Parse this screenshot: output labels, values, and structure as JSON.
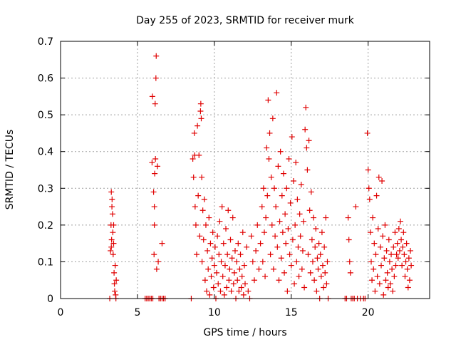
{
  "chart_data": {
    "type": "scatter",
    "title": "Day 255 of 2023, SRMTID for receiver murk",
    "xlabel": "GPS time / hours",
    "ylabel": "SRMTID / TECUs",
    "xlim": [
      0,
      24
    ],
    "ylim": [
      0,
      0.7
    ],
    "xticks": [
      0,
      5,
      10,
      15,
      20
    ],
    "yticks": [
      0,
      0.1,
      0.2,
      0.3,
      0.4,
      0.5,
      0.6,
      0.7
    ],
    "xtick_labels": [
      "0",
      "5",
      "10",
      "15",
      "20"
    ],
    "ytick_labels": [
      "0",
      "0.1",
      "0.2",
      "0.3",
      "0.4",
      "0.5",
      "0.6",
      "0.7"
    ],
    "grid": true,
    "marker": "+",
    "color": "#e00000",
    "series": [
      {
        "points": [
          [
            3.2,
            0.0
          ],
          [
            3.25,
            0.13
          ],
          [
            3.28,
            0.2
          ],
          [
            3.3,
            0.29
          ],
          [
            3.32,
            0.16
          ],
          [
            3.35,
            0.27
          ],
          [
            3.38,
            0.23
          ],
          [
            3.4,
            0.18
          ],
          [
            3.42,
            0.12
          ],
          [
            3.45,
            0.2
          ],
          [
            3.48,
            0.07
          ],
          [
            3.5,
            0.04
          ],
          [
            3.52,
            0.02
          ],
          [
            3.55,
            0.09
          ],
          [
            3.58,
            0.01
          ],
          [
            3.6,
            0.0
          ],
          [
            3.62,
            0.05
          ],
          [
            3.3,
            0.14
          ],
          [
            3.34,
            0.25
          ],
          [
            3.45,
            0.15
          ],
          [
            5.5,
            0.0
          ],
          [
            5.6,
            0.0
          ],
          [
            5.7,
            0.0
          ],
          [
            5.8,
            0.0
          ],
          [
            5.9,
            0.0
          ],
          [
            6.0,
            0.0
          ],
          [
            5.95,
            0.37
          ],
          [
            5.97,
            0.55
          ],
          [
            6.05,
            0.29
          ],
          [
            6.08,
            0.12
          ],
          [
            6.1,
            0.2
          ],
          [
            6.12,
            0.34
          ],
          [
            6.15,
            0.53
          ],
          [
            6.17,
            0.38
          ],
          [
            6.2,
            0.6
          ],
          [
            6.22,
            0.66
          ],
          [
            6.25,
            0.08
          ],
          [
            6.3,
            0.36
          ],
          [
            6.35,
            0.1
          ],
          [
            6.1,
            0.25
          ],
          [
            6.4,
            0.0
          ],
          [
            6.5,
            0.0
          ],
          [
            6.6,
            0.15
          ],
          [
            6.6,
            0.0
          ],
          [
            6.7,
            0.0
          ],
          [
            6.8,
            0.0
          ],
          [
            8.5,
            0.0
          ],
          [
            8.6,
            0.38
          ],
          [
            8.65,
            0.33
          ],
          [
            8.7,
            0.45
          ],
          [
            8.72,
            0.39
          ],
          [
            8.75,
            0.25
          ],
          [
            8.8,
            0.2
          ],
          [
            8.85,
            0.12
          ],
          [
            8.9,
            0.47
          ],
          [
            8.95,
            0.28
          ],
          [
            9.0,
            0.39
          ],
          [
            9.05,
            0.17
          ],
          [
            9.1,
            0.51
          ],
          [
            9.12,
            0.53
          ],
          [
            9.15,
            0.49
          ],
          [
            9.18,
            0.33
          ],
          [
            9.2,
            0.1
          ],
          [
            9.25,
            0.24
          ],
          [
            9.3,
            0.16
          ],
          [
            9.35,
            0.27
          ],
          [
            9.4,
            0.05
          ],
          [
            9.45,
            0.2
          ],
          [
            9.5,
            0.02
          ],
          [
            9.55,
            0.13
          ],
          [
            9.6,
            0.08
          ],
          [
            9.65,
            0.22
          ],
          [
            9.7,
            0.01
          ],
          [
            9.75,
            0.15
          ],
          [
            9.8,
            0.06
          ],
          [
            9.85,
            0.11
          ],
          [
            9.9,
            0.18
          ],
          [
            9.95,
            0.03
          ],
          [
            10.0,
            0.09
          ],
          [
            10.05,
            0.14
          ],
          [
            10.1,
            0.0
          ],
          [
            10.15,
            0.07
          ],
          [
            10.2,
            0.17
          ],
          [
            10.25,
            0.04
          ],
          [
            10.3,
            0.12
          ],
          [
            10.35,
            0.21
          ],
          [
            10.4,
            0.02
          ],
          [
            10.45,
            0.1
          ],
          [
            10.5,
            0.25
          ],
          [
            10.55,
            0.06
          ],
          [
            10.6,
            0.15
          ],
          [
            10.65,
            0.01
          ],
          [
            10.7,
            0.09
          ],
          [
            10.75,
            0.19
          ],
          [
            10.8,
            0.03
          ],
          [
            10.85,
            0.12
          ],
          [
            10.9,
            0.24
          ],
          [
            10.95,
            0.05
          ],
          [
            11.0,
            0.08
          ],
          [
            11.05,
            0.16
          ],
          [
            11.1,
            0.02
          ],
          [
            11.15,
            0.11
          ],
          [
            11.2,
            0.22
          ],
          [
            11.25,
            0.04
          ],
          [
            11.3,
            0.07
          ],
          [
            11.35,
            0.13
          ],
          [
            11.4,
            0.0
          ],
          [
            11.45,
            0.1
          ],
          [
            11.5,
            0.05
          ],
          [
            11.55,
            0.15
          ],
          [
            11.6,
            0.02
          ],
          [
            11.65,
            0.08
          ],
          [
            11.7,
            0.12
          ],
          [
            11.75,
            0.03
          ],
          [
            11.8,
            0.06
          ],
          [
            11.85,
            0.18
          ],
          [
            11.9,
            0.01
          ],
          [
            11.95,
            0.09
          ],
          [
            12.0,
            0.04
          ],
          [
            12.1,
            0.14
          ],
          [
            12.2,
            0.02
          ],
          [
            12.3,
            0.0
          ],
          [
            12.4,
            0.17
          ],
          [
            12.5,
            0.1
          ],
          [
            12.6,
            0.05
          ],
          [
            12.7,
            0.13
          ],
          [
            12.8,
            0.2
          ],
          [
            12.9,
            0.08
          ],
          [
            13.0,
            0.15
          ],
          [
            13.1,
            0.25
          ],
          [
            13.15,
            0.1
          ],
          [
            13.2,
            0.3
          ],
          [
            13.25,
            0.18
          ],
          [
            13.3,
            0.06
          ],
          [
            13.35,
            0.22
          ],
          [
            13.4,
            0.41
          ],
          [
            13.45,
            0.28
          ],
          [
            13.5,
            0.54
          ],
          [
            13.55,
            0.38
          ],
          [
            13.6,
            0.45
          ],
          [
            13.65,
            0.12
          ],
          [
            13.7,
            0.33
          ],
          [
            13.75,
            0.2
          ],
          [
            13.8,
            0.49
          ],
          [
            13.85,
            0.08
          ],
          [
            13.9,
            0.3
          ],
          [
            13.95,
            0.17
          ],
          [
            14.0,
            0.25
          ],
          [
            14.05,
            0.56
          ],
          [
            14.1,
            0.14
          ],
          [
            14.15,
            0.36
          ],
          [
            14.2,
            0.05
          ],
          [
            14.25,
            0.21
          ],
          [
            14.3,
            0.4
          ],
          [
            14.35,
            0.11
          ],
          [
            14.4,
            0.28
          ],
          [
            14.45,
            0.18
          ],
          [
            14.5,
            0.34
          ],
          [
            14.55,
            0.07
          ],
          [
            14.6,
            0.23
          ],
          [
            14.65,
            0.15
          ],
          [
            14.7,
            0.3
          ],
          [
            14.75,
            0.02
          ],
          [
            14.8,
            0.19
          ],
          [
            14.85,
            0.38
          ],
          [
            14.9,
            0.12
          ],
          [
            14.95,
            0.26
          ],
          [
            15.0,
            0.09
          ],
          [
            15.05,
            0.44
          ],
          [
            15.1,
            0.16
          ],
          [
            15.15,
            0.32
          ],
          [
            15.2,
            0.04
          ],
          [
            15.25,
            0.2
          ],
          [
            15.3,
            0.37
          ],
          [
            15.35,
            0.1
          ],
          [
            15.4,
            0.27
          ],
          [
            15.45,
            0.14
          ],
          [
            15.5,
            0.06
          ],
          [
            15.55,
            0.23
          ],
          [
            15.6,
            0.17
          ],
          [
            15.65,
            0.31
          ],
          [
            15.7,
            0.08
          ],
          [
            15.75,
            0.13
          ],
          [
            15.8,
            0.21
          ],
          [
            15.85,
            0.03
          ],
          [
            15.9,
            0.46
          ],
          [
            15.95,
            0.52
          ],
          [
            16.0,
            0.41
          ],
          [
            16.05,
            0.35
          ],
          [
            16.1,
            0.12
          ],
          [
            16.15,
            0.43
          ],
          [
            16.2,
            0.24
          ],
          [
            16.25,
            0.07
          ],
          [
            16.3,
            0.29
          ],
          [
            16.35,
            0.16
          ],
          [
            16.4,
            0.1
          ],
          [
            16.45,
            0.22
          ],
          [
            16.5,
            0.05
          ],
          [
            16.55,
            0.14
          ],
          [
            16.6,
            0.19
          ],
          [
            16.65,
            0.02
          ],
          [
            16.7,
            0.11
          ],
          [
            16.75,
            0.08
          ],
          [
            16.8,
            0.15
          ],
          [
            16.85,
            0.0
          ],
          [
            16.9,
            0.12
          ],
          [
            16.95,
            0.06
          ],
          [
            17.0,
            0.18
          ],
          [
            17.05,
            0.09
          ],
          [
            17.1,
            0.03
          ],
          [
            17.15,
            0.14
          ],
          [
            17.2,
            0.07
          ],
          [
            17.25,
            0.22
          ],
          [
            17.3,
            0.04
          ],
          [
            17.35,
            0.1
          ],
          [
            17.4,
            0.0
          ],
          [
            18.5,
            0.0
          ],
          [
            18.6,
            0.0
          ],
          [
            18.7,
            0.22
          ],
          [
            18.75,
            0.16
          ],
          [
            18.8,
            0.1
          ],
          [
            18.85,
            0.07
          ],
          [
            18.9,
            0.0
          ],
          [
            19.0,
            0.0
          ],
          [
            19.1,
            0.0
          ],
          [
            19.2,
            0.25
          ],
          [
            19.3,
            0.0
          ],
          [
            19.5,
            0.0
          ],
          [
            19.7,
            0.0
          ],
          [
            19.8,
            0.0
          ],
          [
            19.95,
            0.45
          ],
          [
            20.0,
            0.35
          ],
          [
            20.05,
            0.3
          ],
          [
            20.1,
            0.27
          ],
          [
            20.15,
            0.18
          ],
          [
            20.2,
            0.1
          ],
          [
            20.25,
            0.05
          ],
          [
            20.3,
            0.22
          ],
          [
            20.35,
            0.08
          ],
          [
            20.4,
            0.15
          ],
          [
            20.45,
            0.02
          ],
          [
            20.5,
            0.12
          ],
          [
            20.55,
            0.28
          ],
          [
            20.6,
            0.06
          ],
          [
            20.65,
            0.19
          ],
          [
            20.7,
            0.33
          ],
          [
            20.75,
            0.04
          ],
          [
            20.8,
            0.14
          ],
          [
            20.85,
            0.09
          ],
          [
            20.9,
            0.32
          ],
          [
            20.95,
            0.17
          ],
          [
            21.0,
            0.01
          ],
          [
            21.05,
            0.11
          ],
          [
            21.1,
            0.2
          ],
          [
            21.15,
            0.05
          ],
          [
            21.2,
            0.13
          ],
          [
            21.25,
            0.07
          ],
          [
            21.3,
            0.03
          ],
          [
            21.35,
            0.16
          ],
          [
            21.4,
            0.1
          ],
          [
            21.45,
            0.04
          ],
          [
            21.5,
            0.12
          ],
          [
            21.55,
            0.08
          ],
          [
            21.6,
            0.02
          ],
          [
            21.65,
            0.14
          ],
          [
            21.7,
            0.06
          ],
          [
            21.75,
            0.18
          ],
          [
            21.8,
            0.09
          ],
          [
            21.85,
            0.12
          ],
          [
            21.9,
            0.15
          ],
          [
            21.95,
            0.11
          ],
          [
            22.0,
            0.19
          ],
          [
            22.05,
            0.13
          ],
          [
            22.1,
            0.21
          ],
          [
            22.15,
            0.16
          ],
          [
            22.2,
            0.09
          ],
          [
            22.25,
            0.14
          ],
          [
            22.3,
            0.18
          ],
          [
            22.35,
            0.12
          ],
          [
            22.4,
            0.06
          ],
          [
            22.45,
            0.1
          ],
          [
            22.5,
            0.15
          ],
          [
            22.55,
            0.08
          ],
          [
            22.6,
            0.03
          ],
          [
            22.65,
            0.11
          ],
          [
            22.7,
            0.05
          ],
          [
            22.75,
            0.13
          ],
          [
            22.8,
            0.09
          ]
        ]
      }
    ]
  }
}
